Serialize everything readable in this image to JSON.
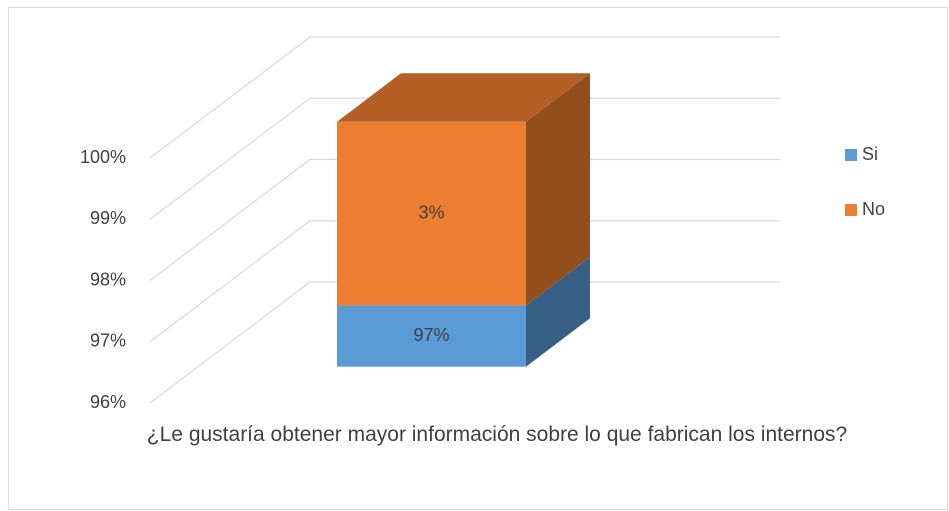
{
  "chart_data": {
    "type": "bar3d_stacked",
    "categories": [
      "¿Le gustaría obtener mayor información sobre lo que fabrican los internos?"
    ],
    "series": [
      {
        "name": "Si",
        "color": "#5b9bd5",
        "values": [
          97
        ],
        "value_labels": [
          "97%"
        ]
      },
      {
        "name": "No",
        "color": "#ed7d31",
        "values": [
          3
        ],
        "value_labels": [
          "3%"
        ]
      }
    ],
    "ylim": [
      96,
      100
    ],
    "yticks": [
      {
        "value": 96,
        "label": "96%"
      },
      {
        "value": 97,
        "label": "97%"
      },
      {
        "value": 98,
        "label": "98%"
      },
      {
        "value": 99,
        "label": "99%"
      },
      {
        "value": 100,
        "label": "100%"
      }
    ],
    "grid": true,
    "legend": "right"
  }
}
